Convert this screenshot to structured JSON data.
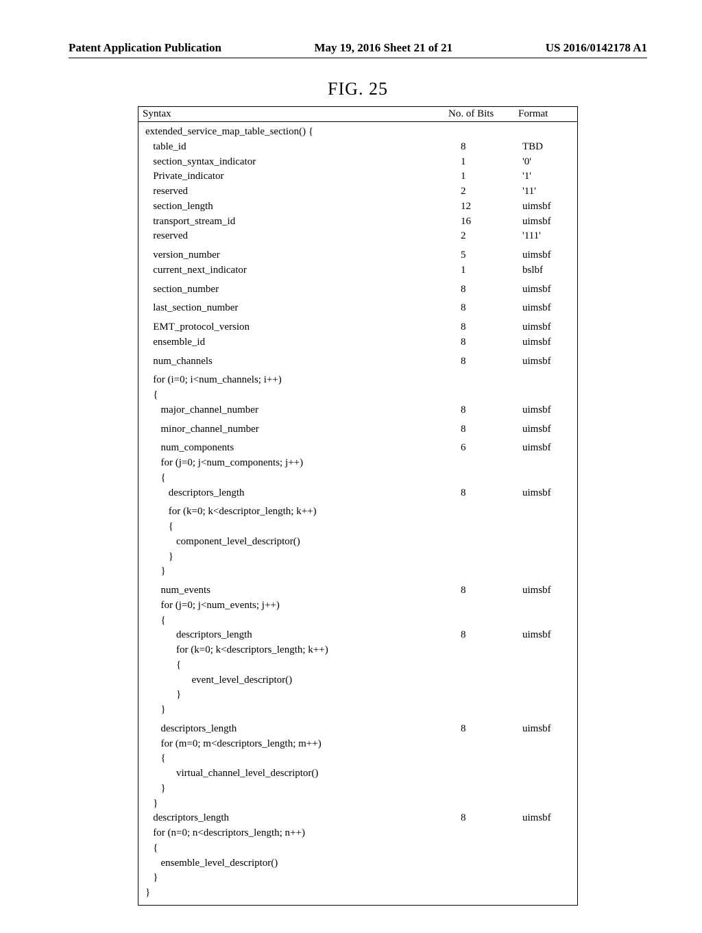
{
  "header": {
    "left": "Patent Application Publication",
    "center": "May 19, 2016  Sheet 21 of 21",
    "right": "US 2016/0142178 A1"
  },
  "figure_label": "FIG. 25",
  "table": {
    "columns": {
      "syntax": "Syntax",
      "bits": "No. of Bits",
      "format": "Format"
    },
    "rows": [
      {
        "indent": 0,
        "syntax": "extended_service_map_table_section() {",
        "bits": "",
        "format": ""
      },
      {
        "indent": 1,
        "syntax": "table_id",
        "bits": "8",
        "format": "TBD"
      },
      {
        "indent": 1,
        "syntax": "section_syntax_indicator",
        "bits": "1",
        "format": "'0'"
      },
      {
        "indent": 1,
        "syntax": "Private_indicator",
        "bits": "1",
        "format": "'1'"
      },
      {
        "indent": 1,
        "syntax": "reserved",
        "bits": "2",
        "format": "'11'"
      },
      {
        "indent": 1,
        "syntax": "section_length",
        "bits": "12",
        "format": "uimsbf"
      },
      {
        "indent": 1,
        "syntax": "transport_stream_id",
        "bits": "16",
        "format": "uimsbf"
      },
      {
        "indent": 1,
        "syntax": "reserved",
        "bits": "2",
        "format": "'111'"
      },
      {
        "indent": 1,
        "syntax": "version_number",
        "bits": "5",
        "format": "uimsbf",
        "gap_before": true
      },
      {
        "indent": 1,
        "syntax": "current_next_indicator",
        "bits": "1",
        "format": "bslbf"
      },
      {
        "indent": 1,
        "syntax": "section_number",
        "bits": "8",
        "format": "uimsbf",
        "gap_before": true
      },
      {
        "indent": 1,
        "syntax": "last_section_number",
        "bits": "8",
        "format": "uimsbf",
        "gap_before": true
      },
      {
        "indent": 1,
        "syntax": "EMT_protocol_version",
        "bits": "8",
        "format": "uimsbf",
        "gap_before": true
      },
      {
        "indent": 1,
        "syntax": "ensemble_id",
        "bits": "8",
        "format": "uimsbf"
      },
      {
        "indent": 1,
        "syntax": "num_channels",
        "bits": "8",
        "format": "uimsbf",
        "gap_before": true
      },
      {
        "indent": 1,
        "syntax": "for (i=0; i<num_channels; i++)",
        "bits": "",
        "format": "",
        "gap_before": true
      },
      {
        "indent": 1,
        "syntax": "{",
        "bits": "",
        "format": ""
      },
      {
        "indent": 2,
        "syntax": "major_channel_number",
        "bits": "8",
        "format": "uimsbf"
      },
      {
        "indent": 2,
        "syntax": "minor_channel_number",
        "bits": "8",
        "format": "uimsbf",
        "gap_before": true
      },
      {
        "indent": 2,
        "syntax": "num_components",
        "bits": "6",
        "format": "uimsbf",
        "gap_before": true
      },
      {
        "indent": 2,
        "syntax": "for (j=0; j<num_components; j++)",
        "bits": "",
        "format": ""
      },
      {
        "indent": 2,
        "syntax": "{",
        "bits": "",
        "format": ""
      },
      {
        "indent": 3,
        "syntax": "descriptors_length",
        "bits": "8",
        "format": "uimsbf"
      },
      {
        "indent": 3,
        "syntax": "for (k=0; k<descriptor_length; k++)",
        "bits": "",
        "format": "",
        "gap_before": true
      },
      {
        "indent": 3,
        "syntax": "{",
        "bits": "",
        "format": ""
      },
      {
        "indent": 4,
        "syntax": "component_level_descriptor()",
        "bits": "",
        "format": ""
      },
      {
        "indent": 3,
        "syntax": "}",
        "bits": "",
        "format": ""
      },
      {
        "indent": 2,
        "syntax": "}",
        "bits": "",
        "format": ""
      },
      {
        "indent": 2,
        "syntax": "num_events",
        "bits": "8",
        "format": "uimsbf",
        "gap_before": true
      },
      {
        "indent": 2,
        "syntax": "for (j=0; j<num_events; j++)",
        "bits": "",
        "format": ""
      },
      {
        "indent": 2,
        "syntax": "{",
        "bits": "",
        "format": ""
      },
      {
        "indent": 4,
        "syntax": "descriptors_length",
        "bits": "8",
        "format": "uimsbf"
      },
      {
        "indent": 4,
        "syntax": "for (k=0; k<descriptors_length; k++)",
        "bits": "",
        "format": ""
      },
      {
        "indent": 4,
        "syntax": "{",
        "bits": "",
        "format": ""
      },
      {
        "indent": 6,
        "syntax": "event_level_descriptor()",
        "bits": "",
        "format": ""
      },
      {
        "indent": 4,
        "syntax": "}",
        "bits": "",
        "format": ""
      },
      {
        "indent": 2,
        "syntax": "}",
        "bits": "",
        "format": ""
      },
      {
        "indent": 2,
        "syntax": "descriptors_length",
        "bits": "8",
        "format": "uimsbf",
        "gap_before": true
      },
      {
        "indent": 2,
        "syntax": "for (m=0; m<descriptors_length; m++)",
        "bits": "",
        "format": ""
      },
      {
        "indent": 2,
        "syntax": "{",
        "bits": "",
        "format": ""
      },
      {
        "indent": 4,
        "syntax": "virtual_channel_level_descriptor()",
        "bits": "",
        "format": ""
      },
      {
        "indent": 2,
        "syntax": "}",
        "bits": "",
        "format": ""
      },
      {
        "indent": 1,
        "syntax": "}",
        "bits": "",
        "format": ""
      },
      {
        "indent": 1,
        "syntax": "descriptors_length",
        "bits": "8",
        "format": "uimsbf"
      },
      {
        "indent": 1,
        "syntax": "for (n=0; n<descriptors_length; n++)",
        "bits": "",
        "format": ""
      },
      {
        "indent": 1,
        "syntax": "{",
        "bits": "",
        "format": ""
      },
      {
        "indent": 2,
        "syntax": "ensemble_level_descriptor()",
        "bits": "",
        "format": ""
      },
      {
        "indent": 1,
        "syntax": "}",
        "bits": "",
        "format": ""
      },
      {
        "indent": 0,
        "syntax": "}",
        "bits": "",
        "format": ""
      }
    ]
  }
}
